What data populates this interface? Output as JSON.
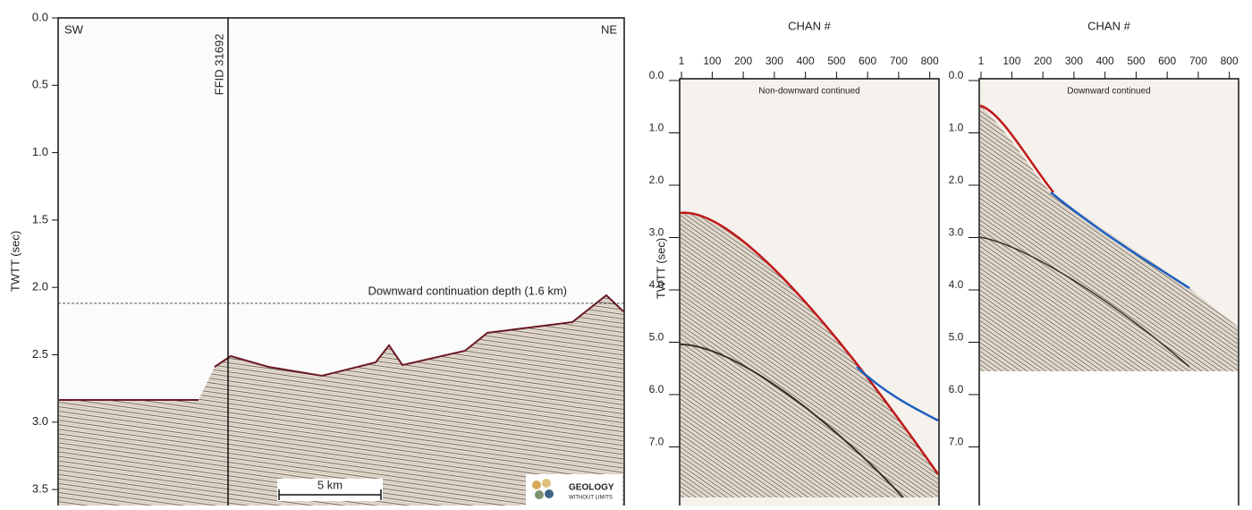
{
  "left_panel": {
    "y_axis_label": "TWTT (sec)",
    "y_ticks": [
      "0.0",
      "0.5",
      "1.0",
      "1.5",
      "2.0",
      "2.5",
      "3.0",
      "3.5"
    ],
    "left_label": "SW",
    "right_label": "NE",
    "trace_label": "FFID 31692",
    "depth_annotation": "Downward continuation depth (1.6 km)",
    "scale_bar": "5 km",
    "logo": {
      "line1": "GEOLOGY",
      "line2": "WITHOUT LIMITS"
    }
  },
  "gathers": [
    {
      "x_axis_label": "CHAN #",
      "x_ticks": [
        "1",
        "100",
        "200",
        "300",
        "400",
        "500",
        "600",
        "700",
        "800"
      ],
      "y_axis_label": "TWTT (sec)",
      "y_ticks": [
        "0.0",
        "1.0",
        "2.0",
        "3.0",
        "4.0",
        "5.0",
        "6.0",
        "7.0"
      ],
      "caption": "Non-downward continued"
    },
    {
      "x_axis_label": "CHAN #",
      "x_ticks": [
        "1",
        "100",
        "200",
        "300",
        "400",
        "500",
        "600",
        "700",
        "800"
      ],
      "y_ticks": [
        "0.0",
        "1.0",
        "2.0",
        "3.0",
        "4.0",
        "5.0",
        "6.0",
        "7.0"
      ],
      "caption": "Downward continued"
    }
  ]
}
